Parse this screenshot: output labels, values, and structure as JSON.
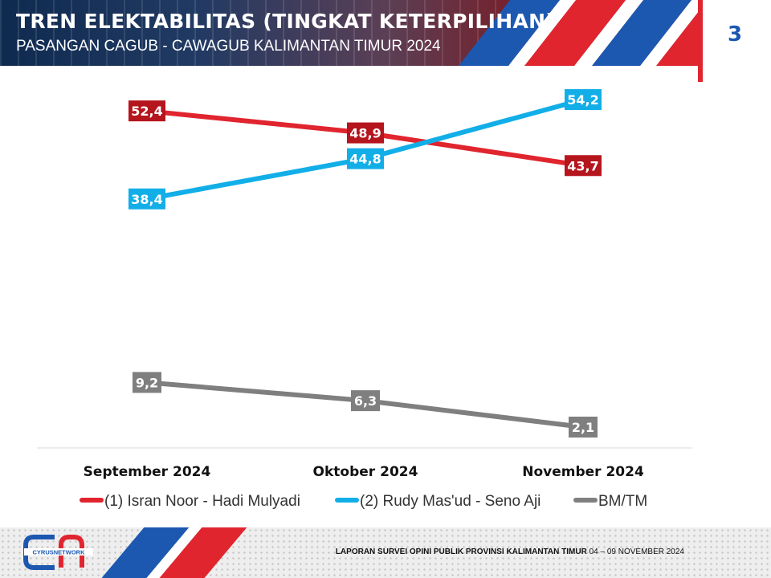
{
  "header": {
    "title": "TREN ELEKTABILITAS (TINGKAT KETERPILIHAN)",
    "subtitle": "PASANGAN CAGUB - CAWAGUB KALIMANTAN TIMUR 2024",
    "page_number": "3"
  },
  "chart_data": {
    "type": "line",
    "categories": [
      "September 2024",
      "Oktober 2024",
      "November 2024"
    ],
    "series": [
      {
        "name": "(1) Isran Noor - Hadi Mulyadi",
        "color": "#e0252f",
        "label_color": "#b5151d",
        "values": [
          52.4,
          48.9,
          43.7
        ],
        "labels": [
          "52,4",
          "48,9",
          "43,7"
        ]
      },
      {
        "name": "(2) Rudy Mas'ud - Seno Aji",
        "color": "#12aee8",
        "label_color": "#12aee8",
        "values": [
          38.4,
          44.8,
          54.2
        ],
        "labels": [
          "38,4",
          "44,8",
          "54,2"
        ]
      },
      {
        "name": "BM/TM",
        "color": "#7f7f7f",
        "label_color": "#7f7f7f",
        "values": [
          9.2,
          6.3,
          2.1
        ],
        "labels": [
          "9,2",
          "6,3",
          "2,1"
        ]
      }
    ],
    "legend_position": "bottom",
    "grid": false
  },
  "footer": {
    "logo_text": "CYRUSNETWORK",
    "report_bold": "LAPORAN SURVEI OPINI PUBLIK PROVINSI KALIMANTAN TIMUR",
    "report_date": " 04 – 09 NOVEMBER 2024"
  }
}
